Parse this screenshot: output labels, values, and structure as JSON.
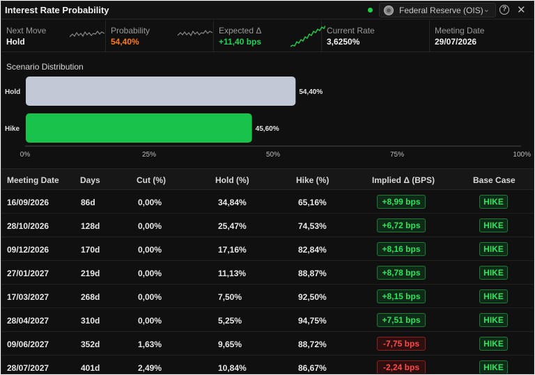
{
  "header": {
    "title": "Interest Rate Probability",
    "source": "Federal Reserve (OIS)",
    "help": "?",
    "close": "✕",
    "chevron": "⌄"
  },
  "stats": [
    {
      "label": "Next Move",
      "value": "Hold",
      "tone": "white"
    },
    {
      "label": "Probability",
      "value": "54,40%",
      "tone": "orange"
    },
    {
      "label": "Expected Δ",
      "value": "+11,40 bps",
      "tone": "green"
    },
    {
      "label": "Current Rate",
      "value": "3,6250%",
      "tone": "white"
    },
    {
      "label": "Meeting Date",
      "value": "29/07/2026",
      "tone": "white"
    }
  ],
  "scenario": {
    "title": "Scenario Distribution",
    "chart_data": {
      "type": "bar",
      "orientation": "horizontal",
      "categories": [
        "Hold",
        "Hike"
      ],
      "values": [
        54.4,
        45.6
      ],
      "value_labels": [
        "54,40%",
        "45,60%"
      ],
      "colors": [
        "#c3c8d6",
        "#19c24a"
      ],
      "xlim": [
        0,
        100
      ],
      "x_ticks": [
        "0%",
        "25%",
        "50%",
        "75%",
        "100%"
      ]
    }
  },
  "table": {
    "columns": [
      "Meeting Date",
      "Days",
      "Cut (%)",
      "Hold (%)",
      "Hike (%)",
      "Implied Δ (BPS)",
      "Base Case"
    ],
    "rows": [
      {
        "date": "16/09/2026",
        "days": "86d",
        "cut": "0,00%",
        "hold": "34,84%",
        "hike": "65,16%",
        "implied": "+8,99 bps",
        "sign": "pos",
        "base": "HIKE"
      },
      {
        "date": "28/10/2026",
        "days": "128d",
        "cut": "0,00%",
        "hold": "25,47%",
        "hike": "74,53%",
        "implied": "+6,72 bps",
        "sign": "pos",
        "base": "HIKE"
      },
      {
        "date": "09/12/2026",
        "days": "170d",
        "cut": "0,00%",
        "hold": "17,16%",
        "hike": "82,84%",
        "implied": "+8,16 bps",
        "sign": "pos",
        "base": "HIKE"
      },
      {
        "date": "27/01/2027",
        "days": "219d",
        "cut": "0,00%",
        "hold": "11,13%",
        "hike": "88,87%",
        "implied": "+8,78 bps",
        "sign": "pos",
        "base": "HIKE"
      },
      {
        "date": "17/03/2027",
        "days": "268d",
        "cut": "0,00%",
        "hold": "7,50%",
        "hike": "92,50%",
        "implied": "+8,15 bps",
        "sign": "pos",
        "base": "HIKE"
      },
      {
        "date": "28/04/2027",
        "days": "310d",
        "cut": "0,00%",
        "hold": "5,25%",
        "hike": "94,75%",
        "implied": "+7,51 bps",
        "sign": "pos",
        "base": "HIKE"
      },
      {
        "date": "09/06/2027",
        "days": "352d",
        "cut": "1,63%",
        "hold": "9,65%",
        "hike": "88,72%",
        "implied": "-7,75 bps",
        "sign": "neg",
        "base": "HIKE"
      },
      {
        "date": "28/07/2027",
        "days": "401d",
        "cut": "2,49%",
        "hold": "10,84%",
        "hike": "86,67%",
        "implied": "-2,24 bps",
        "sign": "neg",
        "base": "HIKE"
      }
    ]
  }
}
